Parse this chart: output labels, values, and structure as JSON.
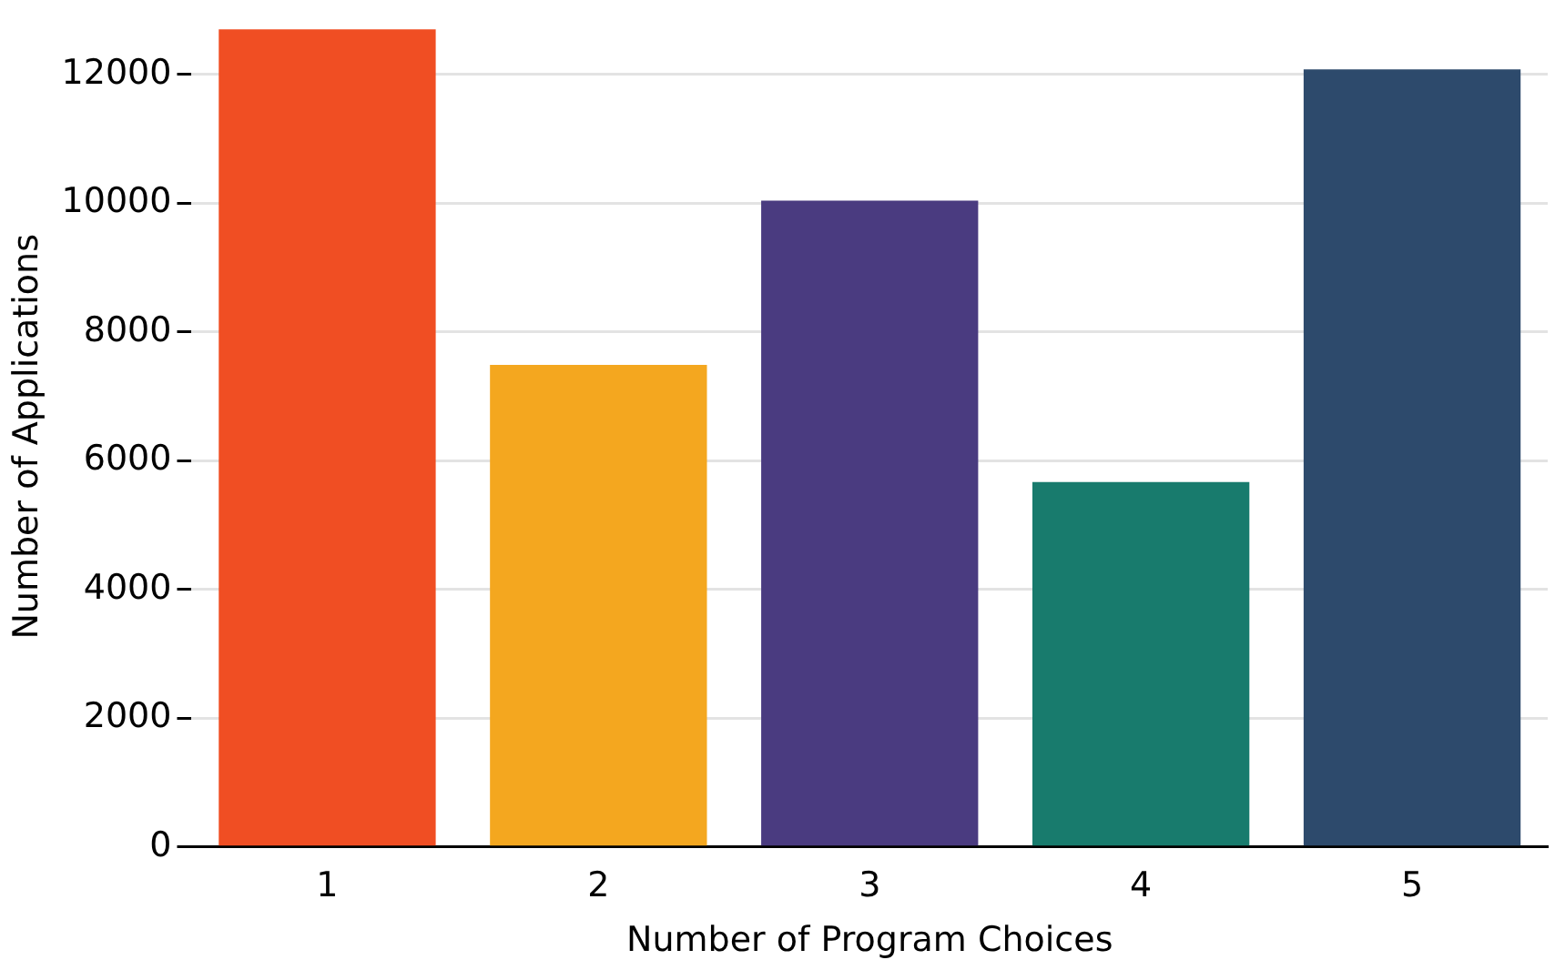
{
  "chart_data": {
    "type": "bar",
    "xlabel": "Number of Program Choices",
    "ylabel": "Number of Applications",
    "categories": [
      "1",
      "2",
      "3",
      "4",
      "5"
    ],
    "values": [
      12700,
      7490,
      10040,
      5670,
      12080
    ],
    "colors": [
      "#f04e23",
      "#f4a71f",
      "#4a3b80",
      "#187b6d",
      "#2d4a6c"
    ],
    "ylim": [
      0,
      12750
    ],
    "yticks": [
      0,
      2000,
      4000,
      6000,
      8000,
      10000,
      12000
    ],
    "grid": "y",
    "legend": false
  }
}
